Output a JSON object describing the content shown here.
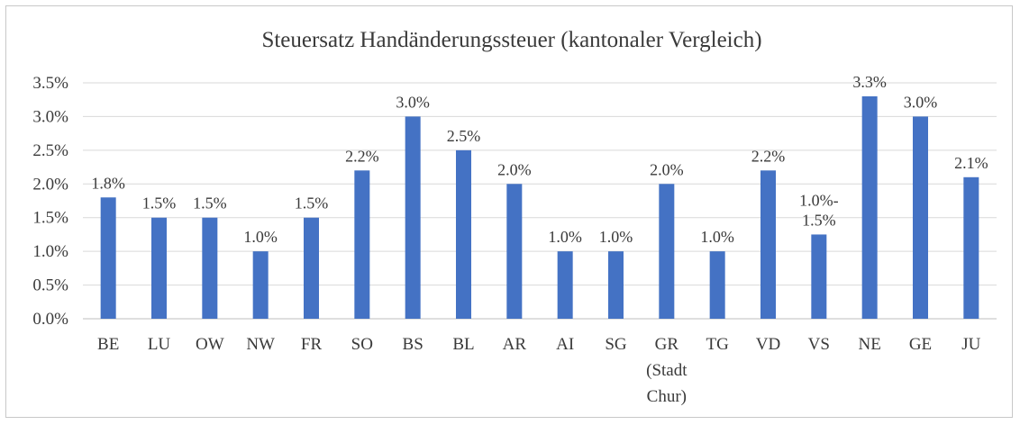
{
  "chart_data": {
    "type": "bar",
    "title": "Steuersatz Handänderungssteuer  (kantonaler Vergleich)",
    "xlabel": "",
    "ylabel": "",
    "ylim": [
      0,
      3.5
    ],
    "y_ticks": [
      "0.0%",
      "0.5%",
      "1.0%",
      "1.5%",
      "2.0%",
      "2.5%",
      "3.0%",
      "3.5%"
    ],
    "grid": true,
    "legend": "none",
    "bar_color": "#4472c4",
    "categories": [
      [
        "BE"
      ],
      [
        "LU"
      ],
      [
        "OW"
      ],
      [
        "NW"
      ],
      [
        "FR"
      ],
      [
        "SO"
      ],
      [
        "BS"
      ],
      [
        "BL"
      ],
      [
        "AR"
      ],
      [
        "AI"
      ],
      [
        "SG"
      ],
      [
        "GR",
        "(Stadt",
        "Chur)"
      ],
      [
        "TG"
      ],
      [
        "VD"
      ],
      [
        "VS"
      ],
      [
        "NE"
      ],
      [
        "GE"
      ],
      [
        "JU"
      ]
    ],
    "values": [
      1.8,
      1.5,
      1.5,
      1.0,
      1.5,
      2.2,
      3.0,
      2.5,
      2.0,
      1.0,
      1.0,
      2.0,
      1.0,
      2.2,
      1.25,
      3.3,
      3.0,
      2.1
    ],
    "data_labels": [
      [
        "1.8%"
      ],
      [
        "1.5%"
      ],
      [
        "1.5%"
      ],
      [
        "1.0%"
      ],
      [
        "1.5%"
      ],
      [
        "2.2%"
      ],
      [
        "3.0%"
      ],
      [
        "2.5%"
      ],
      [
        "2.0%"
      ],
      [
        "1.0%"
      ],
      [
        "1.0%"
      ],
      [
        "2.0%"
      ],
      [
        "1.0%"
      ],
      [
        "2.2%"
      ],
      [
        "1.0%-",
        "1.5%"
      ],
      [
        "3.3%"
      ],
      [
        "3.0%"
      ],
      [
        "2.1%"
      ]
    ]
  }
}
